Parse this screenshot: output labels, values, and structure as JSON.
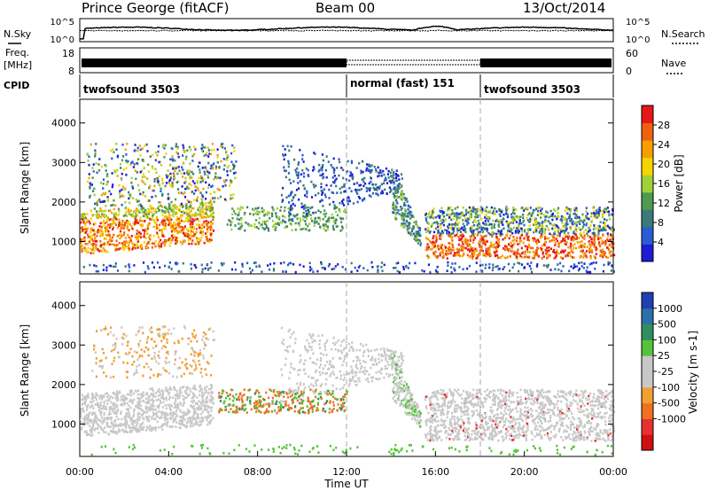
{
  "header": {
    "radar": "Prince George (fitACF)",
    "beam": "Beam 00",
    "date": "13/Oct/2014"
  },
  "strip_labels": {
    "nsky": "N.Sky",
    "nsearch": "N.Search",
    "freq": "Freq.",
    "mhz": "[MHz]",
    "nave": "Nave",
    "cpid": "CPID"
  },
  "strip_ticks": {
    "noise_left": [
      "10^5",
      "10^0"
    ],
    "noise_right": [
      "10^5",
      "10^0"
    ],
    "freq_left": [
      "18",
      "8"
    ],
    "nave_right": [
      "60",
      "0"
    ]
  },
  "cpid_segments": [
    {
      "label": "twofsound 3503",
      "start_h": 0
    },
    {
      "label": "normal (fast) 151",
      "start_h": 12
    },
    {
      "label": "twofsound 3503",
      "start_h": 18
    }
  ],
  "colors": {
    "power": [
      "#1d1dd6",
      "#2a5cd4",
      "#3a7a7a",
      "#4f9a4f",
      "#9fd23a",
      "#f5d400",
      "#f5a000",
      "#f06010",
      "#e81818"
    ],
    "velocity": [
      "#1f3fb4",
      "#2f6fa8",
      "#2f8f5f",
      "#55c43a",
      "#c8c8c8",
      "#c8c8c8",
      "#f0a030",
      "#f07020",
      "#e83030",
      "#d01010"
    ]
  },
  "chart_data": [
    {
      "type": "heatmap",
      "name": "power",
      "xlabel": "",
      "ylabel": "Slant Range [km]",
      "xlim_hours": [
        0,
        24
      ],
      "ylim_km": [
        180,
        4600
      ],
      "yticks": [
        "1000",
        "2000",
        "3000",
        "4000"
      ],
      "colorbar": {
        "label": "Power [dB]",
        "ticks": [
          "4",
          "8",
          "12",
          "16",
          "20",
          "24",
          "28"
        ],
        "range": [
          0,
          32
        ]
      },
      "features": [
        {
          "x_h": [
            0,
            6
          ],
          "y_km": [
            700,
            1900
          ],
          "level_db": "high (16-28)"
        },
        {
          "x_h": [
            1,
            7
          ],
          "y_km": [
            1800,
            3500
          ],
          "level_db": "mixed (4-24)"
        },
        {
          "x_h": [
            6.5,
            12
          ],
          "y_km": [
            1300,
            1900
          ],
          "level_db": "medium (8-16)"
        },
        {
          "x_h": [
            9,
            14.5
          ],
          "y_km": [
            1500,
            3500
          ],
          "level_db": "low (4-12)"
        },
        {
          "x_h": [
            14,
            15.3
          ],
          "y_km": [
            900,
            2900
          ],
          "level_db": "low-medium"
        },
        {
          "x_h": [
            15.5,
            24
          ],
          "y_km": [
            600,
            1900
          ],
          "level_db": "high (20-32)"
        }
      ]
    },
    {
      "type": "heatmap",
      "name": "velocity",
      "xlabel": "Time UT",
      "ylabel": "Slant Range [km]",
      "xlim_hours": [
        0,
        24
      ],
      "ylim_km": [
        180,
        4600
      ],
      "xticks": [
        "00:00",
        "04:00",
        "08:00",
        "12:00",
        "16:00",
        "20:00",
        "00:00"
      ],
      "yticks": [
        "1000",
        "2000",
        "3000",
        "4000"
      ],
      "colorbar": {
        "label": "Velocity [m s-1]",
        "ticks": [
          "1000",
          "500",
          "100",
          "25",
          "-25",
          "-100",
          "-500",
          "-1000"
        ]
      },
      "features": [
        {
          "x_h": [
            0,
            6
          ],
          "y_km": [
            700,
            1900
          ],
          "velocity_ms": "~0 (grey)"
        },
        {
          "x_h": [
            6.2,
            12
          ],
          "y_km": [
            1300,
            1900
          ],
          "velocity_ms": "-100 to -500 (orange)"
        },
        {
          "x_h": [
            14,
            15.3
          ],
          "y_km": [
            900,
            2900
          ],
          "velocity_ms": "~0 (grey)"
        },
        {
          "x_h": [
            15.5,
            24
          ],
          "y_km": [
            600,
            1900
          ],
          "velocity_ms": "~0 (grey)"
        }
      ]
    }
  ]
}
